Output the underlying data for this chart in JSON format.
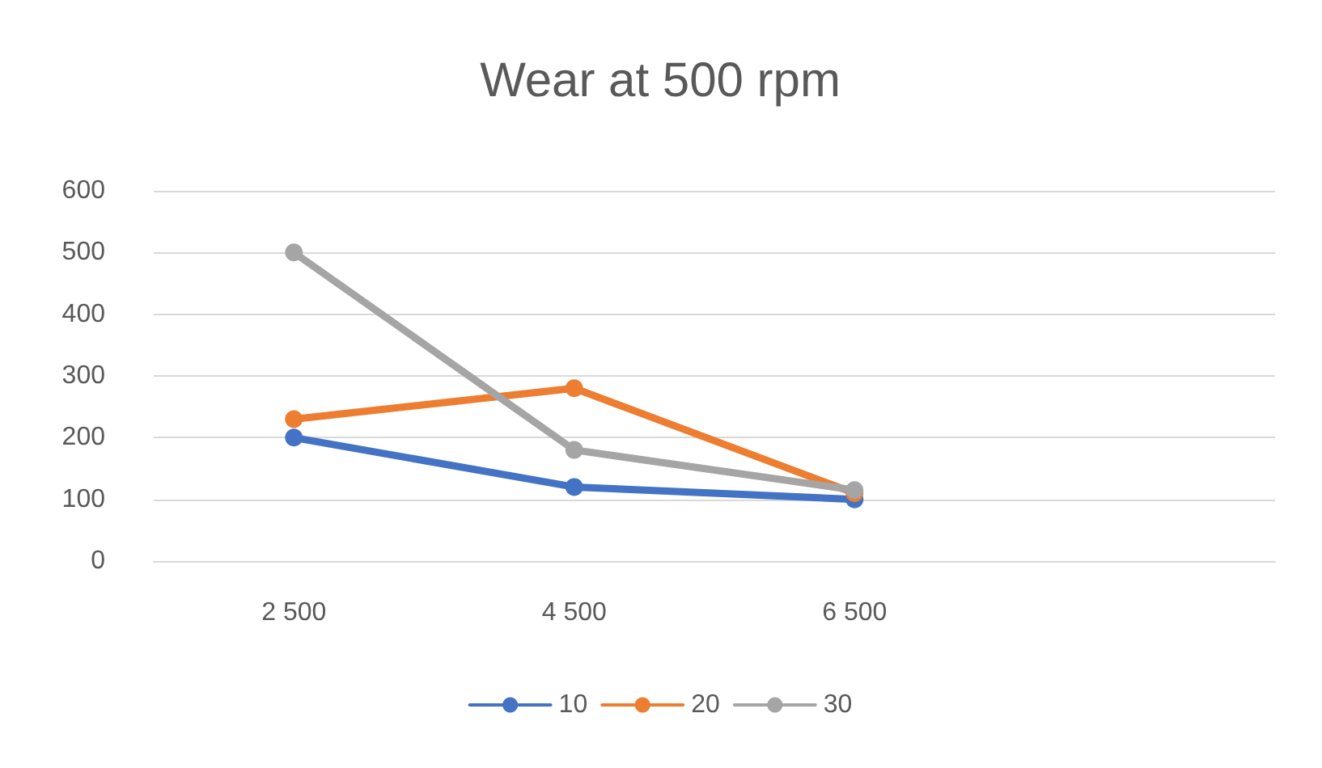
{
  "chart_data": {
    "type": "line",
    "title": "Wear at 500 rpm",
    "categories": [
      "2 500",
      "4 500",
      "6 500",
      null
    ],
    "series": [
      {
        "name": "10",
        "color": "#4472c4",
        "values": [
          200,
          120,
          100,
          null
        ]
      },
      {
        "name": "20",
        "color": "#ed7d31",
        "values": [
          230,
          280,
          110,
          null
        ]
      },
      {
        "name": "30",
        "color": "#a5a5a5",
        "values": [
          500,
          180,
          115,
          null
        ]
      }
    ],
    "ylim": [
      0,
      600
    ],
    "yticks": [
      0,
      100,
      200,
      300,
      400,
      500,
      600
    ],
    "grid": "y",
    "legend": "bottom",
    "marker": "circle",
    "line_style": "solid"
  }
}
